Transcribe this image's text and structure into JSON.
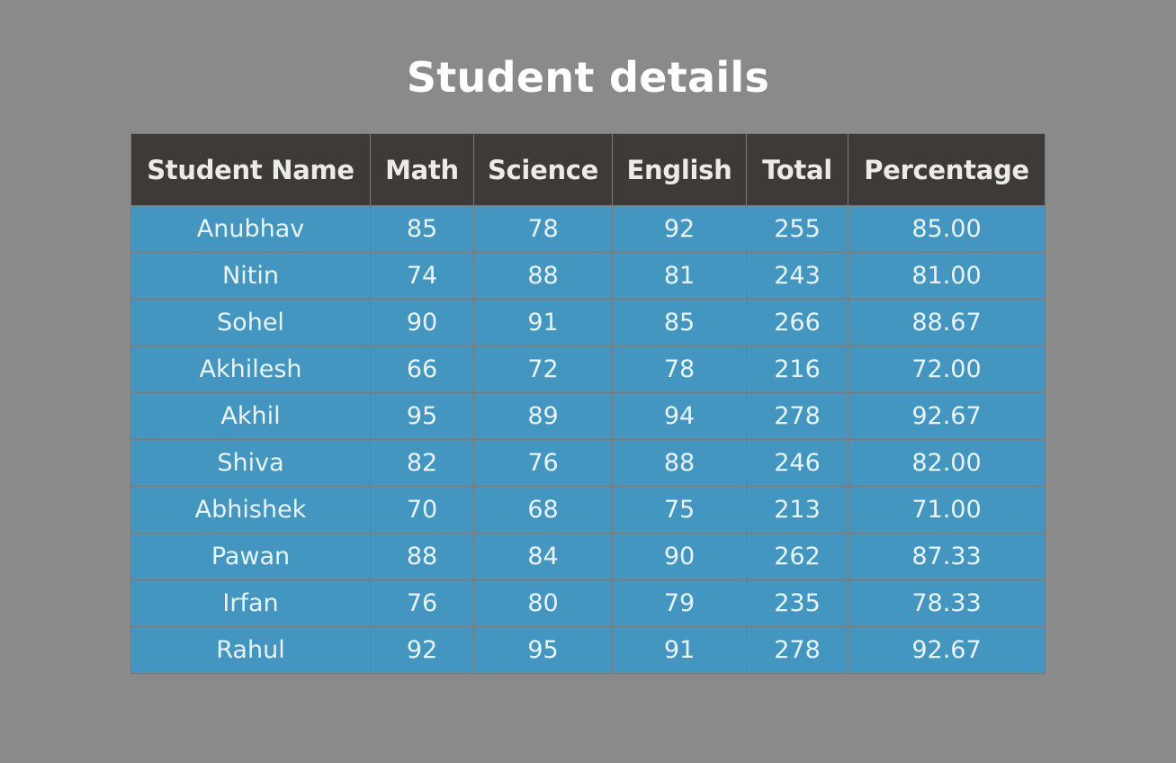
{
  "page": {
    "title": "Student details"
  },
  "table": {
    "columns": [
      "Student Name",
      "Math",
      "Science",
      "English",
      "Total",
      "Percentage"
    ],
    "rows": [
      [
        "Anubhav",
        "85",
        "78",
        "92",
        "255",
        "85.00"
      ],
      [
        "Nitin",
        "74",
        "88",
        "81",
        "243",
        "81.00"
      ],
      [
        "Sohel",
        "90",
        "91",
        "85",
        "266",
        "88.67"
      ],
      [
        "Akhilesh",
        "66",
        "72",
        "78",
        "216",
        "72.00"
      ],
      [
        "Akhil",
        "95",
        "89",
        "94",
        "278",
        "92.67"
      ],
      [
        "Shiva",
        "82",
        "76",
        "88",
        "246",
        "82.00"
      ],
      [
        "Abhishek",
        "70",
        "68",
        "75",
        "213",
        "71.00"
      ],
      [
        "Pawan",
        "88",
        "84",
        "90",
        "262",
        "87.33"
      ],
      [
        "Irfan",
        "76",
        "80",
        "79",
        "235",
        "78.33"
      ],
      [
        "Rahul",
        "92",
        "95",
        "91",
        "278",
        "92.67"
      ]
    ]
  },
  "colors": {
    "background": "#8a8a8a",
    "header_bg": "#3e3a37",
    "row_bg": "#4396c0",
    "text": "#ffffff"
  }
}
